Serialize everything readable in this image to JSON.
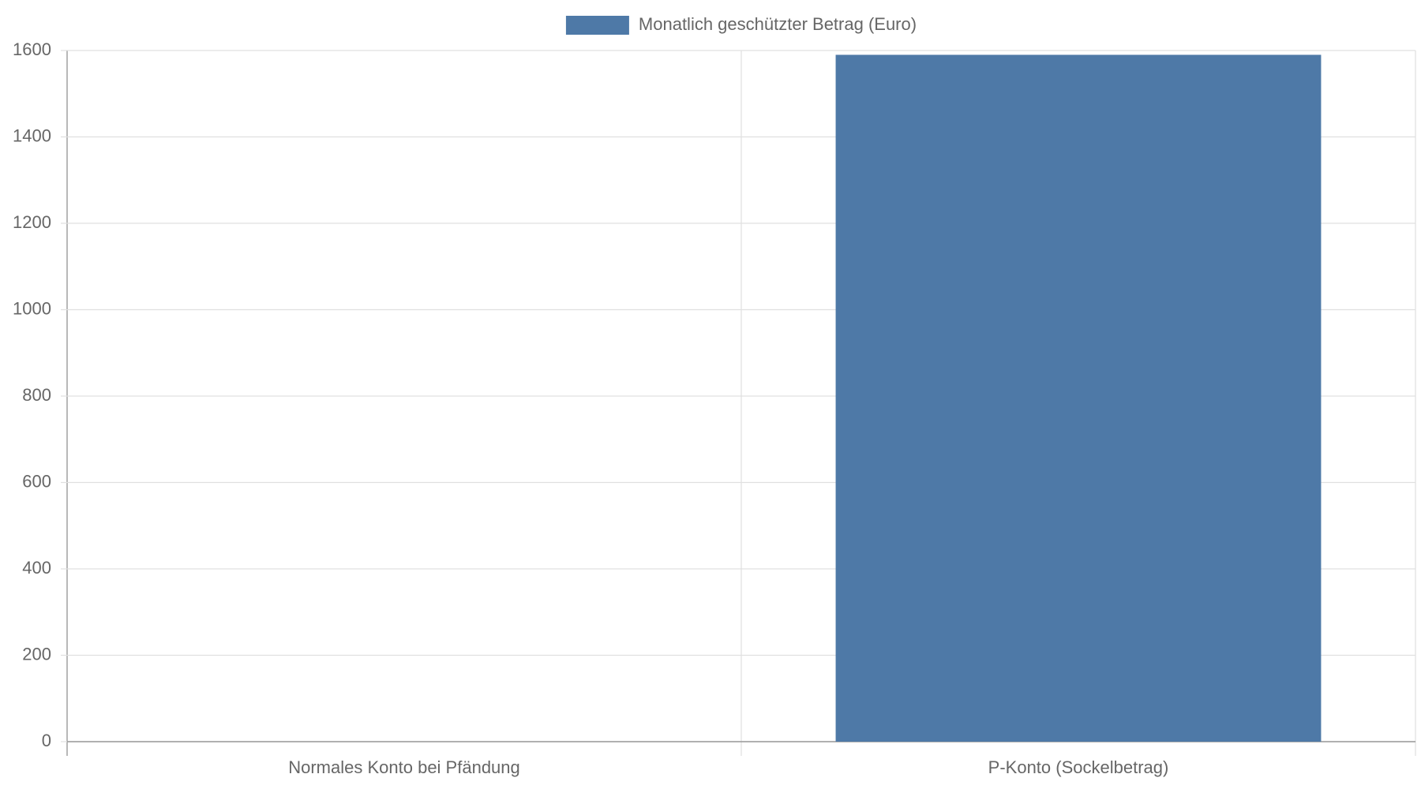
{
  "chart_data": {
    "type": "bar",
    "categories": [
      "Normales Konto bei Pfändung",
      "P-Konto (Sockelbetrag)"
    ],
    "series": [
      {
        "name": "Monatlich geschützter Betrag (Euro)",
        "color": "#4e79a7",
        "values": [
          0,
          1590
        ]
      }
    ],
    "ylim": [
      0,
      1600
    ],
    "yticks": [
      0,
      200,
      400,
      600,
      800,
      1000,
      1200,
      1400,
      1600
    ],
    "grid": true,
    "legend": "top"
  }
}
